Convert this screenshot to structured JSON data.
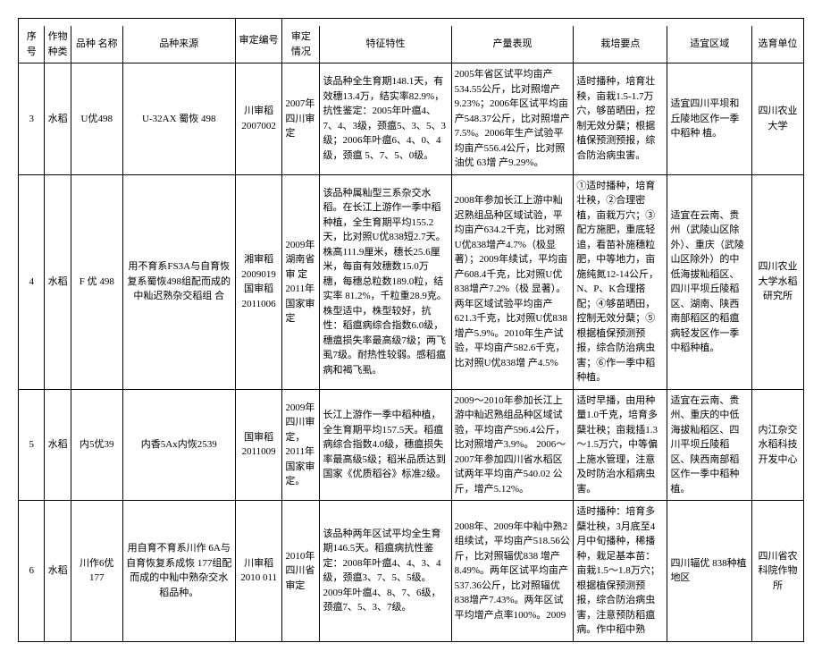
{
  "headers": {
    "num": "序 号",
    "crop": "作物种类",
    "variety": "品种 名称",
    "source": "品种来源",
    "approval": "审定编号",
    "situation": "审定 情况",
    "trait": "特征特性",
    "yield": "产量表现",
    "cultivation": "栽培要点",
    "region": "适宜区域",
    "breeder": "选育单位"
  },
  "rows": [
    {
      "num": "3",
      "crop": "水稻",
      "variety": "U优498",
      "source": "U-32AX 蜀恢 498",
      "approval": "川审稻2007002",
      "situation": "2007年四川审定",
      "trait": "该品种全生育期148.1天，有效穗13.4万，结实率82.9%，抗性鉴定：2005年叶瘟4、7、4、3级，颈瘟5、3、5、3级；2006年叶瘟6、4、0、4 级，颈瘟 5、7、5、0级。",
      "yield": "2005年省区试平均亩产534.55公斤，比对照增产 9.23%；2006年区试平均亩产548.37公斤，比对照增产7.5%。2006年生产试验平均亩产556.4公斤，比对照油优 63增 产9.29%。",
      "cultivation": "适时播种，培育壮秧，亩栽1.5-1.7万穴，够苗晒田，控制无效分蘖；根据植保预测预报，综合防治病虫害。",
      "region": "适宜四川平坝和丘陵地区作一季中稻种 植。",
      "breeder": "四川农业大学"
    },
    {
      "num": "4",
      "crop": "水稻",
      "variety": "F 优 498",
      "source": "用不育系FS3A与自育恢复系蜀恢498组配而成的中籼迟熟杂交稻组 合",
      "approval": "湘审稻2009019 国审稻2011006",
      "situation": "2009年湖南省审 定 2011年国家审定",
      "trait": "该品种属籼型三系杂交水稻。在长江上游作一季中稻种植，全生育期平均155.2天，比对照U优838短2.7天。株高111.9厘米，穗长25.6厘米，每亩有效穗数15.0万穗，每穗总粒数189.0粒，结实率 81.2%，千粒重28.9克。株型适中，株型较好，抗性：稻瘟病综合指数6.0级，穗瘟损失率最高级7级；两飞虱7级。耐热性较弱。感稻瘟病和褐飞虱。",
      "yield": "2008年参加长江上游中籼迟熟组品种区域试验，平均亩产634.2千克，比对照U优838增产4.7%（极显著）；2009年续试，平均亩产608.4千克，比对照U优838增产7.2%（极 显著）。两年区域试验平均亩产621.3千克，比对照U优838增产5.9%。2010年生产试验，平均亩产582.6千克，比对照U优838增 产4.5%",
      "cultivation": "①适时播种，培育壮秧，②合理密植，亩栽万穴；③配方施肥，重底轻追，看苗补施穗粒肥，中等地力，亩施纯氮12-14公斤，N、P、K合理搭配；④够苗晒田，控制无效分蘖；⑤根据植保预测预报，综合防治病虫害；⑥作一季中稻种植。",
      "region": "适宜在云南、贵州（武陵山区除外）、重庆（武陵山区除外）的中低海拔籼稻区、四川平坝丘陵稻区、湖南、陕西南部稻区的稻瘟病轻发区作一季中稻种植。",
      "breeder": "四川农业大学水稻研究所"
    },
    {
      "num": "5",
      "crop": "水稻",
      "variety": "内5优39",
      "source": "内香5Ax内恢2539",
      "approval": "国审稻2011009",
      "situation": "2009年四川审定，2011年国家审定。",
      "trait": "长江上游作一季中稻种植，全生育期平均157.5天。稻瘟病综合指数4.0级，穗瘟损失率最高级5级；稻米品质达到国家《优质稻谷》标准2级。",
      "yield": "2009～2010年参加长江上游中籼迟熟组品种区域试验，平均亩产596.4公斤，比对照增产3.9%。 2006～2007年参加四川省水稻区试两年平均亩产540.02 公斤，增产5.12%。",
      "cultivation": "适时早播，由用种量1.0千克，培育多蘖壮秧；亩栽插1.3～1.5万穴，中等偏上施水管理，注意及时防治水稻病虫害。",
      "region": "适宜在云南、贵州、重庆的中低海拔籼稻区、四川平坝丘陵稻区、陕西南部稻区作一季中稻种 植。",
      "breeder": "内江杂交水稻科技开发中心"
    },
    {
      "num": "6",
      "crop": "水稻",
      "variety": "川作6优177",
      "source": "用自育不育系川作 6A与自育恢复系成恢 177组配而成的中籼中熟杂交水稻品种。",
      "approval": "川审稻2010 011",
      "situation": "2010年四川省审定",
      "trait": "该品种两年区试平均全生育期146.5天。稻瘟病抗性鉴定：2008年叶瘟4、4、3、4级，颈瘟3、7、5、5级。2009年叶瘟4、8、7、6级，颈瘟7、5、3、7级。",
      "yield": "2008年、2009年中籼中熟2组续试，平均亩产518.56公斤，比对照辐优838 增产8.49%。两年区试平均亩产537.36公斤，比对照辐优838增产7.43%。两年区试平均增产点率100%。2009",
      "cultivation": "适时播种：培育多蘖壮秧，3月底至4月中旬播种，稀播种，栽足基本苗：亩栽1.5～1.8万穴；根据植保预测预报，综合防治病虫害，注意预防稻瘟病。作中稻中熟",
      "region": "四川辐优 838种植地区",
      "breeder": "四川省农科院作物 所"
    }
  ]
}
